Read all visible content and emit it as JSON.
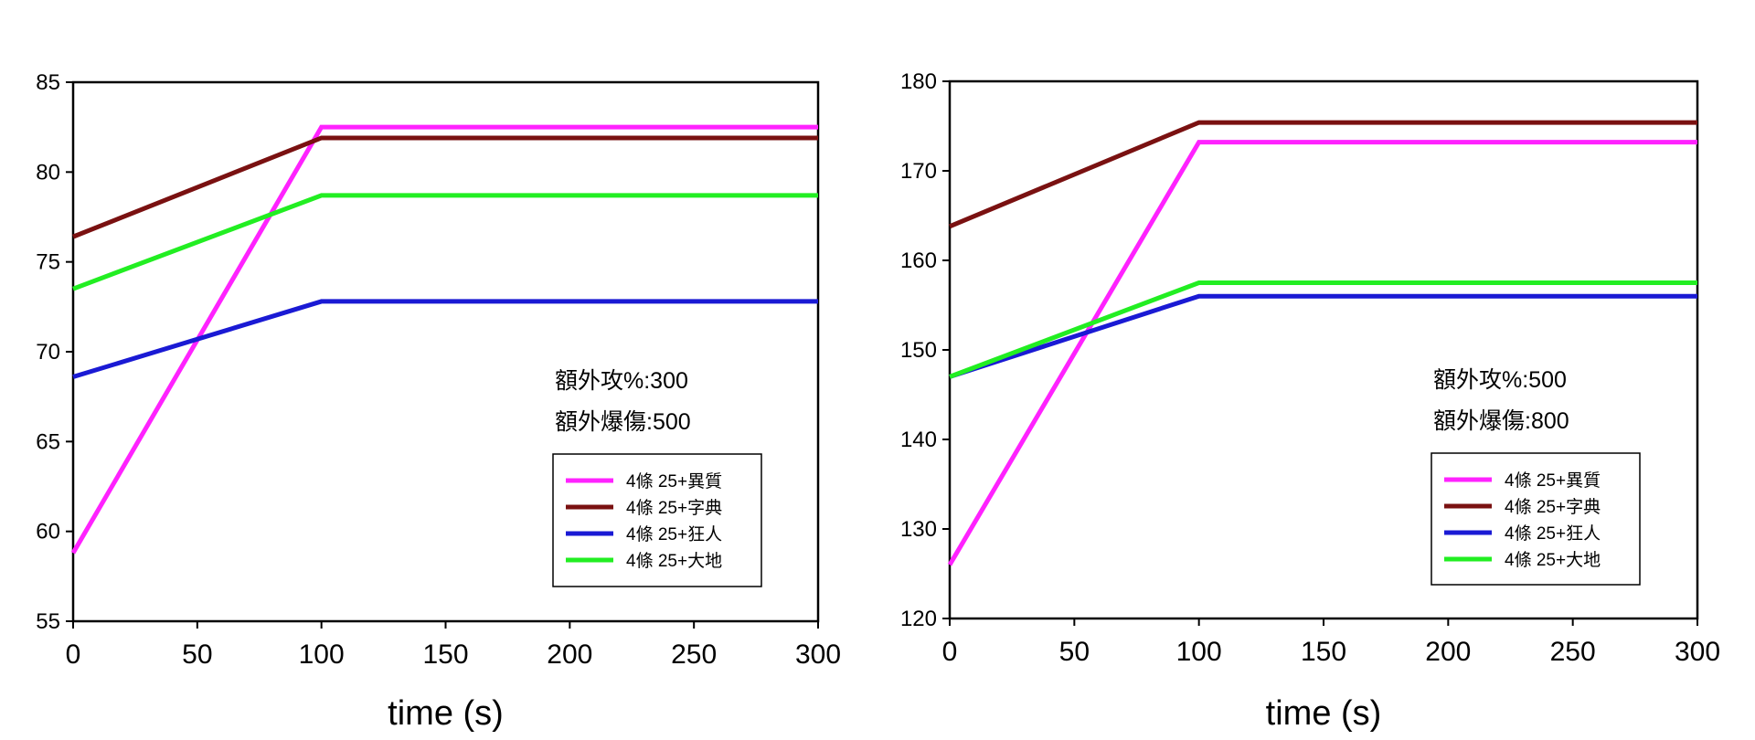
{
  "chart_data": [
    {
      "type": "line",
      "xlabel": "time (s)",
      "ylabel": "",
      "xlim": [
        0,
        300
      ],
      "ylim": [
        55,
        85
      ],
      "xticks": [
        0,
        50,
        100,
        150,
        200,
        250,
        300
      ],
      "yticks": [
        55,
        60,
        65,
        70,
        75,
        80,
        85
      ],
      "grid": false,
      "legend_position": "bottom-right",
      "annotations": [
        "額外攻%:300",
        "額外爆傷:500"
      ],
      "series": [
        {
          "name": "4條 25+異質",
          "color": "#ff22ff",
          "x": [
            0,
            100,
            300
          ],
          "y": [
            58.8,
            82.5,
            82.5
          ]
        },
        {
          "name": "4條 25+字典",
          "color": "#7a1111",
          "x": [
            0,
            100,
            300
          ],
          "y": [
            76.4,
            81.9,
            81.9
          ]
        },
        {
          "name": "4條 25+狂人",
          "color": "#1a1ad4",
          "x": [
            0,
            100,
            300
          ],
          "y": [
            68.6,
            72.8,
            72.8
          ]
        },
        {
          "name": "4條 25+大地",
          "color": "#22ee22",
          "x": [
            0,
            100,
            300
          ],
          "y": [
            73.5,
            78.7,
            78.7
          ]
        }
      ]
    },
    {
      "type": "line",
      "xlabel": "time (s)",
      "ylabel": "",
      "xlim": [
        0,
        300
      ],
      "ylim": [
        120,
        180
      ],
      "xticks": [
        0,
        50,
        100,
        150,
        200,
        250,
        300
      ],
      "yticks": [
        120,
        130,
        140,
        150,
        160,
        170,
        180
      ],
      "grid": false,
      "legend_position": "bottom-right",
      "annotations": [
        "額外攻%:500",
        "額外爆傷:800"
      ],
      "series": [
        {
          "name": "4條 25+異質",
          "color": "#ff22ff",
          "x": [
            0,
            100,
            300
          ],
          "y": [
            126,
            173.2,
            173.2
          ]
        },
        {
          "name": "4條 25+字典",
          "color": "#7a1111",
          "x": [
            0,
            100,
            300
          ],
          "y": [
            163.8,
            175.4,
            175.4
          ]
        },
        {
          "name": "4條 25+狂人",
          "color": "#1a1ad4",
          "x": [
            0,
            100,
            300
          ],
          "y": [
            147,
            156,
            156
          ]
        },
        {
          "name": "4條 25+大地",
          "color": "#22ee22",
          "x": [
            0,
            100,
            300
          ],
          "y": [
            147,
            157.5,
            157.5
          ]
        }
      ]
    }
  ]
}
